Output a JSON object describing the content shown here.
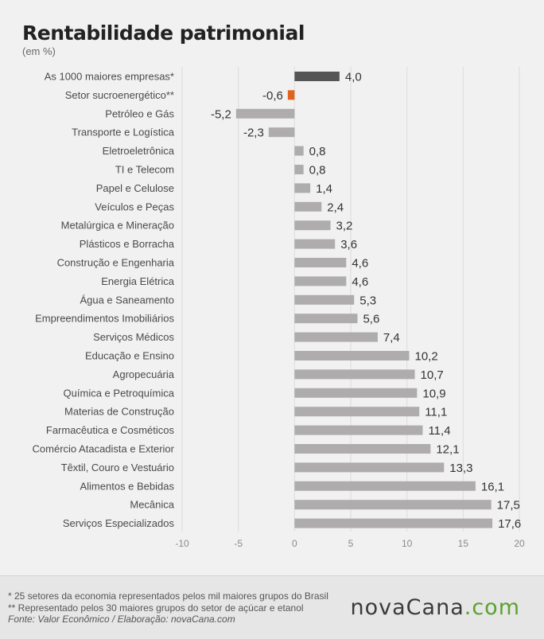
{
  "title": "Rentabilidade patrimonial",
  "subtitle": "(em %)",
  "colors": {
    "highlight": "#555555",
    "negative_highlight": "#e0631f",
    "bar": "#aeacac",
    "background": "#f1f1f1"
  },
  "chart_data": {
    "type": "bar",
    "orientation": "horizontal",
    "categories": [
      "As 1000 maiores empresas*",
      "Setor sucroenergético**",
      "Petróleo e Gás",
      "Transporte e Logística",
      "Eletroeletrônica",
      "TI e Telecom",
      "Papel e Celulose",
      "Veículos e Peças",
      "Metalúrgica e Mineração",
      "Plásticos e Borracha",
      "Construção e Engenharia",
      "Energia Elétrica",
      "Água e Saneamento",
      "Empreendimentos Imobiliários",
      "Serviços Médicos",
      "Educação e Ensino",
      "Agropecuária",
      "Química e Petroquímica",
      "Materias de Construção",
      "Farmacêutica e Cosméticos",
      "Comércio Atacadista e Exterior",
      "Têxtil, Couro e Vestuário",
      "Alimentos e Bebidas",
      "Mecânica",
      "Serviços Especializados"
    ],
    "values": [
      4.0,
      -0.6,
      -5.2,
      -2.3,
      0.8,
      0.8,
      1.4,
      2.4,
      3.2,
      3.6,
      4.6,
      4.6,
      5.3,
      5.6,
      7.4,
      10.2,
      10.7,
      10.9,
      11.1,
      11.4,
      12.1,
      13.3,
      16.1,
      17.5,
      17.6
    ],
    "value_labels": [
      "4,0",
      "-0,6",
      "-5,2",
      "-2,3",
      "0,8",
      "0,8",
      "1,4",
      "2,4",
      "3,2",
      "3,6",
      "4,6",
      "4,6",
      "5,3",
      "5,6",
      "7,4",
      "10,2",
      "10,7",
      "10,9",
      "11,1",
      "11,4",
      "12,1",
      "13,3",
      "16,1",
      "17,5",
      "17,6"
    ],
    "highlight_index": [
      0,
      1
    ],
    "xlim": [
      -10,
      20
    ],
    "xticks": [
      -10,
      -5,
      0,
      5,
      10,
      15,
      20
    ],
    "grid": "vertical",
    "title": "Rentabilidade patrimonial",
    "subtitle": "(em %)"
  },
  "footer": {
    "note1": "* 25 setores da economia representados pelos mil maiores grupos do Brasil",
    "note2": "** Representado pelos 30 maiores grupos do setor de açúcar e etanol",
    "source": "Fonte: Valor Econômico / Elaboração: novaCana.com",
    "logo_main": "novaCana",
    "logo_dot": ".com"
  }
}
